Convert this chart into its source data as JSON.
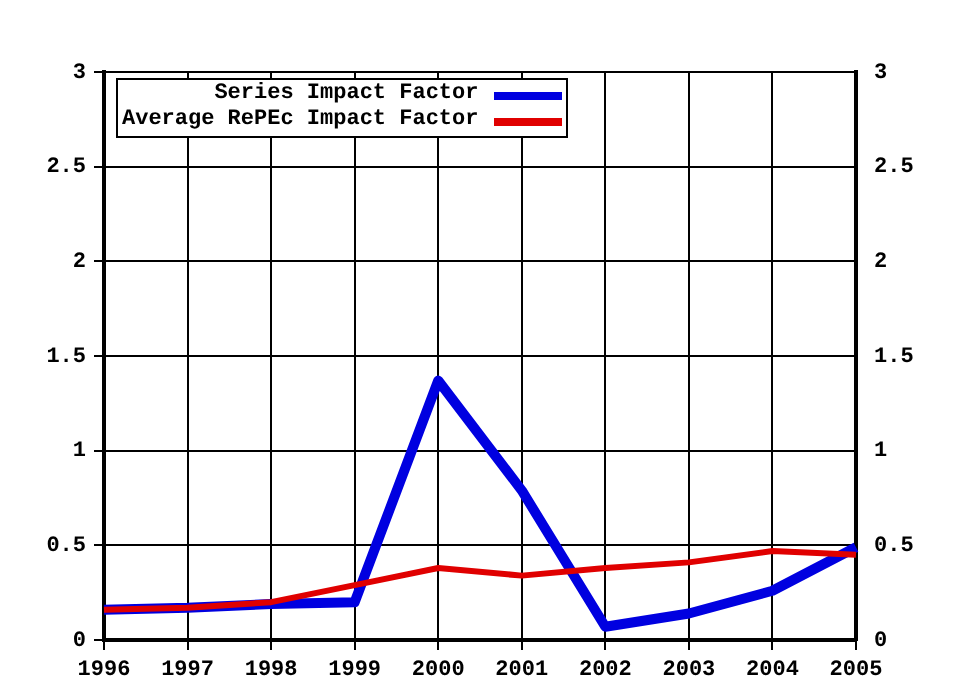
{
  "chart_data": {
    "type": "line",
    "categories": [
      "1996",
      "1997",
      "1998",
      "1999",
      "2000",
      "2001",
      "2002",
      "2003",
      "2004",
      "2005"
    ],
    "series": [
      {
        "name": "Series Impact Factor",
        "color": "#0000e0",
        "values": [
          0.16,
          0.17,
          0.19,
          0.2,
          1.37,
          0.79,
          0.07,
          0.14,
          0.26,
          0.49
        ]
      },
      {
        "name": "Average RePEc Impact Factor",
        "color": "#e00000",
        "values": [
          0.16,
          0.17,
          0.2,
          0.29,
          0.38,
          0.34,
          0.38,
          0.41,
          0.47,
          0.45
        ]
      }
    ],
    "ylim": [
      0,
      3
    ],
    "yticks": [
      0,
      0.5,
      1,
      1.5,
      2,
      2.5,
      3
    ],
    "y2lim": [
      0,
      3
    ],
    "y2ticks": [
      0,
      0.5,
      1,
      1.5,
      2,
      2.5,
      3
    ],
    "grid": true,
    "legend": "top left",
    "marker": "none",
    "line_style": "solid"
  }
}
